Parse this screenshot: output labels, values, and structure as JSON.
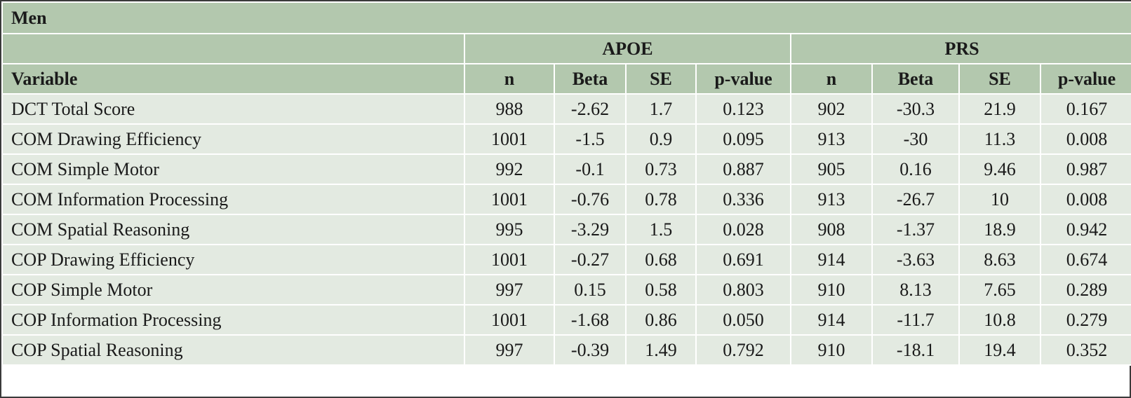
{
  "table": {
    "section_label": "Men",
    "groups": [
      "APOE",
      "PRS"
    ],
    "columns": [
      "Variable",
      "n",
      "Beta",
      "SE",
      "p-value",
      "n",
      "Beta",
      "SE",
      "p-value"
    ],
    "rows": [
      [
        "DCT Total Score",
        "988",
        "-2.62",
        "1.7",
        "0.123",
        "902",
        "-30.3",
        "21.9",
        "0.167"
      ],
      [
        "COM Drawing Efficiency",
        "1001",
        "-1.5",
        "0.9",
        "0.095",
        "913",
        "-30",
        "11.3",
        "0.008"
      ],
      [
        "COM Simple Motor",
        "992",
        "-0.1",
        "0.73",
        "0.887",
        "905",
        "0.16",
        "9.46",
        "0.987"
      ],
      [
        "COM Information Processing",
        "1001",
        "-0.76",
        "0.78",
        "0.336",
        "913",
        "-26.7",
        "10",
        "0.008"
      ],
      [
        "COM Spatial Reasoning",
        "995",
        "-3.29",
        "1.5",
        "0.028",
        "908",
        "-1.37",
        "18.9",
        "0.942"
      ],
      [
        "COP Drawing Efficiency",
        "1001",
        "-0.27",
        "0.68",
        "0.691",
        "914",
        "-3.63",
        "8.63",
        "0.674"
      ],
      [
        "COP Simple Motor",
        "997",
        "0.15",
        "0.58",
        "0.803",
        "910",
        "8.13",
        "7.65",
        "0.289"
      ],
      [
        "COP Information Processing",
        "1001",
        "-1.68",
        "0.86",
        "0.050",
        "914",
        "-11.7",
        "10.8",
        "0.279"
      ],
      [
        "COP Spatial Reasoning",
        "997",
        "-0.39",
        "1.49",
        "0.792",
        "910",
        "-18.1",
        "19.4",
        "0.352"
      ]
    ]
  }
}
